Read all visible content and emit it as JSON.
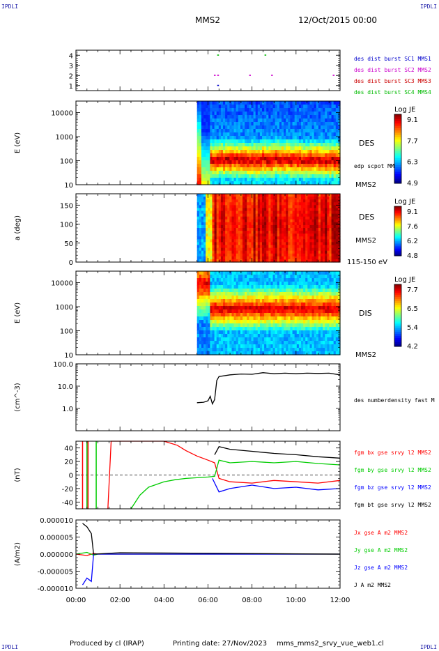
{
  "corner_label": "IPDLI",
  "header": {
    "spacecraft": "MMS2",
    "datetime": "12/Oct/2015 00:00"
  },
  "footer": {
    "produced": "Produced by cl (IRAP)",
    "printing": "Printing date: 27/Nov/2023",
    "file": "mms_mms2_srvy_vue_web1.cl"
  },
  "colors": {
    "mms1": "#0000cc",
    "mms2": "#cc00cc",
    "mms3": "#cc0000",
    "mms4": "#00bb00",
    "bx": "#ff0000",
    "by": "#00cc00",
    "bz": "#0000ff",
    "bt": "#000000"
  },
  "chart_data": [
    {
      "type": "scatter",
      "id": "burst",
      "x_hours": [
        0,
        12
      ],
      "ylim": [
        0.5,
        4.5
      ],
      "yticks": [
        "1",
        "2",
        "3",
        "4"
      ],
      "legend": [
        "des dist burst SC1 MMS1",
        "des dist burst SC2 MMS2",
        "des dist burst SC3 MMS3",
        "des dist burst SC4 MMS4"
      ],
      "points": [
        {
          "sc": 4,
          "t": [
            6.45,
            8.6
          ]
        },
        {
          "sc": 2,
          "t": [
            6.3,
            6.45,
            7.9,
            8.9,
            11.7
          ]
        },
        {
          "sc": 1,
          "t": [
            6.45
          ]
        }
      ]
    },
    {
      "type": "heatmap",
      "id": "des_energy",
      "ylabel": "E (eV)",
      "yscale": "log",
      "ylim": [
        10,
        30000
      ],
      "yticks": [
        "10",
        "100",
        "1000",
        "10000"
      ],
      "data_start_hours": 5.5,
      "label": "DES",
      "sublabel": "MMS2",
      "extra_label": "edp scpot MMS2",
      "colorbar": {
        "title": "Log JE",
        "ticks": [
          "9.1",
          "7.7",
          "6.3",
          "4.9"
        ]
      }
    },
    {
      "type": "heatmap",
      "id": "des_pitch",
      "ylabel": "a (deg)",
      "ylim": [
        0,
        180
      ],
      "yticks": [
        "0",
        "50",
        "100",
        "150"
      ],
      "data_start_hours": 5.5,
      "label": "DES",
      "sublabel": "MMS2",
      "energy_range": "115-150 eV",
      "colorbar": {
        "title": "Log JE",
        "ticks": [
          "9.1",
          "7.6",
          "6.2",
          "4.8"
        ]
      }
    },
    {
      "type": "heatmap",
      "id": "dis_energy",
      "ylabel": "E (eV)",
      "yscale": "log",
      "ylim": [
        10,
        30000
      ],
      "yticks": [
        "10",
        "100",
        "1000",
        "10000"
      ],
      "data_start_hours": 5.5,
      "label": "DIS",
      "sublabel": "MMS2",
      "colorbar": {
        "title": "Log JE",
        "ticks": [
          "7.7",
          "6.5",
          "5.4",
          "4.2"
        ]
      }
    },
    {
      "type": "line",
      "id": "density",
      "ylabel": "(cm^-3)",
      "yscale": "log",
      "ylim": [
        0.1,
        100
      ],
      "yticks": [
        "1.0",
        "10.0",
        "100.0"
      ],
      "legend": [
        "des numberdensity fast M"
      ],
      "series": [
        {
          "name": "des numberdensity fast M",
          "x": [
            5.5,
            5.8,
            6.0,
            6.1,
            6.2,
            6.3,
            6.4,
            6.5,
            7.0,
            7.5,
            8.0,
            8.5,
            9.0,
            9.5,
            10.0,
            10.5,
            11.0,
            11.5,
            12.0
          ],
          "y": [
            1.8,
            1.9,
            2.2,
            3.5,
            1.6,
            2.5,
            18,
            27,
            32,
            35,
            34,
            40,
            36,
            38,
            36,
            38,
            37,
            38,
            32
          ]
        }
      ]
    },
    {
      "type": "line",
      "id": "bfield",
      "ylabel": "(nT)",
      "ylim": [
        -50,
        50
      ],
      "yticks": [
        "-40",
        "-20",
        "0",
        "20",
        "40"
      ],
      "legend": [
        "fgm bx gse srvy l2 MMS2",
        "fgm by gse srvy l2 MMS2",
        "fgm bz gse srvy l2 MMS2",
        "fgm bt gse srvy l2 MMS2"
      ],
      "series": [
        {
          "name": "fgm bx gse srvy l2 MMS2",
          "x": [
            1.45,
            1.6,
            4.0,
            4.6,
            5.0,
            5.5,
            6.0,
            6.3,
            6.5,
            7.0,
            8.0,
            9.0,
            10.0,
            11.0,
            12.0
          ],
          "y": [
            -50,
            50,
            50,
            44,
            36,
            28,
            22,
            18,
            -5,
            -10,
            -12,
            -8,
            -10,
            -12,
            -8
          ]
        },
        {
          "name": "fgm by gse srvy l2 MMS2",
          "x": [
            2.5,
            2.9,
            3.3,
            4.0,
            4.5,
            5.0,
            5.5,
            6.0,
            6.3,
            6.5,
            7.0,
            8.0,
            9.0,
            10.0,
            11.0,
            12.0
          ],
          "y": [
            -50,
            -30,
            -18,
            -10,
            -7,
            -5,
            -4,
            -3,
            -2,
            22,
            18,
            20,
            18,
            20,
            17,
            15
          ]
        },
        {
          "name": "fgm bz gse srvy l2 MMS2",
          "x": [
            6.2,
            6.5,
            7.0,
            8.0,
            9.0,
            10.0,
            11.0,
            12.0
          ],
          "y": [
            -5,
            -25,
            -20,
            -15,
            -20,
            -18,
            -22,
            -20
          ]
        },
        {
          "name": "fgm bt gse srvy l2 MMS2",
          "x": [
            6.3,
            6.5,
            7.0,
            8.0,
            9.0,
            10.0,
            11.0,
            12.0
          ],
          "y": [
            30,
            42,
            38,
            35,
            32,
            30,
            27,
            25
          ]
        }
      ]
    },
    {
      "type": "line",
      "id": "current",
      "ylabel": "(A/m2)",
      "ylim": [
        -1e-05,
        1e-05
      ],
      "yticks": [
        "-0.000010",
        "-0.000005",
        "0.000000",
        "0.000005",
        "0.000010"
      ],
      "xticks": [
        "00:00",
        "02:00",
        "04:00",
        "06:00",
        "08:00",
        "10:00",
        "12:00"
      ],
      "legend": [
        "Jx gse A m2 MMS2",
        "Jy gse A m2 MMS2",
        "Jz gse A m2 MMS2",
        "J A m2 MMS2"
      ],
      "series": [
        {
          "name": "Jx gse A m2 MMS2",
          "x": [
            0,
            0.5,
            0.8,
            1.0,
            12.0
          ],
          "y": [
            0,
            -4e-07,
            2e-07,
            0,
            0
          ]
        },
        {
          "name": "Jy gse A m2 MMS2",
          "x": [
            0,
            0.5,
            0.8,
            1.0,
            12.0
          ],
          "y": [
            0,
            5e-07,
            -3e-07,
            0,
            0
          ]
        },
        {
          "name": "Jz gse A m2 MMS2",
          "x": [
            0.3,
            0.5,
            0.7,
            0.8,
            12.0
          ],
          "y": [
            -9e-06,
            -7e-06,
            -8e-06,
            0,
            0
          ]
        },
        {
          "name": "J A m2 MMS2",
          "x": [
            0.3,
            0.5,
            0.7,
            0.8,
            2.0,
            12.0
          ],
          "y": [
            9e-06,
            8e-06,
            6e-06,
            0,
            4e-07,
            0
          ]
        }
      ]
    }
  ]
}
